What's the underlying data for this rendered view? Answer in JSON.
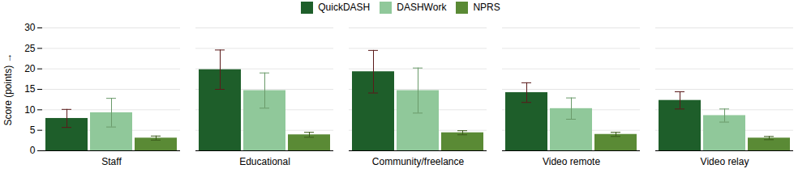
{
  "chart_data": {
    "type": "bar",
    "categories": [
      "Staff",
      "Educational",
      "Community/freelance",
      "Video remote",
      "Video relay"
    ],
    "series": [
      {
        "name": "QuickDASH",
        "color": "#1e5e2a",
        "error_color": "#5a1a1a",
        "values": [
          7.9,
          19.8,
          19.3,
          14.2,
          12.3
        ],
        "errors": [
          2.2,
          4.8,
          5.2,
          2.4,
          2.1
        ]
      },
      {
        "name": "DASHWork",
        "color": "#90c89a",
        "error_color": "#6a9a6a",
        "values": [
          9.3,
          14.7,
          14.7,
          10.3,
          8.6
        ],
        "errors": [
          3.5,
          4.3,
          5.5,
          2.6,
          1.6
        ]
      },
      {
        "name": "NPRS",
        "color": "#5a8a35",
        "error_color": "#3a5a1a",
        "values": [
          3.1,
          3.9,
          4.4,
          4.0,
          3.1
        ],
        "errors": [
          0.5,
          0.6,
          0.5,
          0.5,
          0.4
        ]
      }
    ],
    "ylabel": "Score (points)",
    "ylim": [
      0,
      30
    ],
    "yticks": [
      0,
      5,
      10,
      15,
      20,
      25,
      30
    ],
    "grid": true,
    "legend": "top"
  }
}
